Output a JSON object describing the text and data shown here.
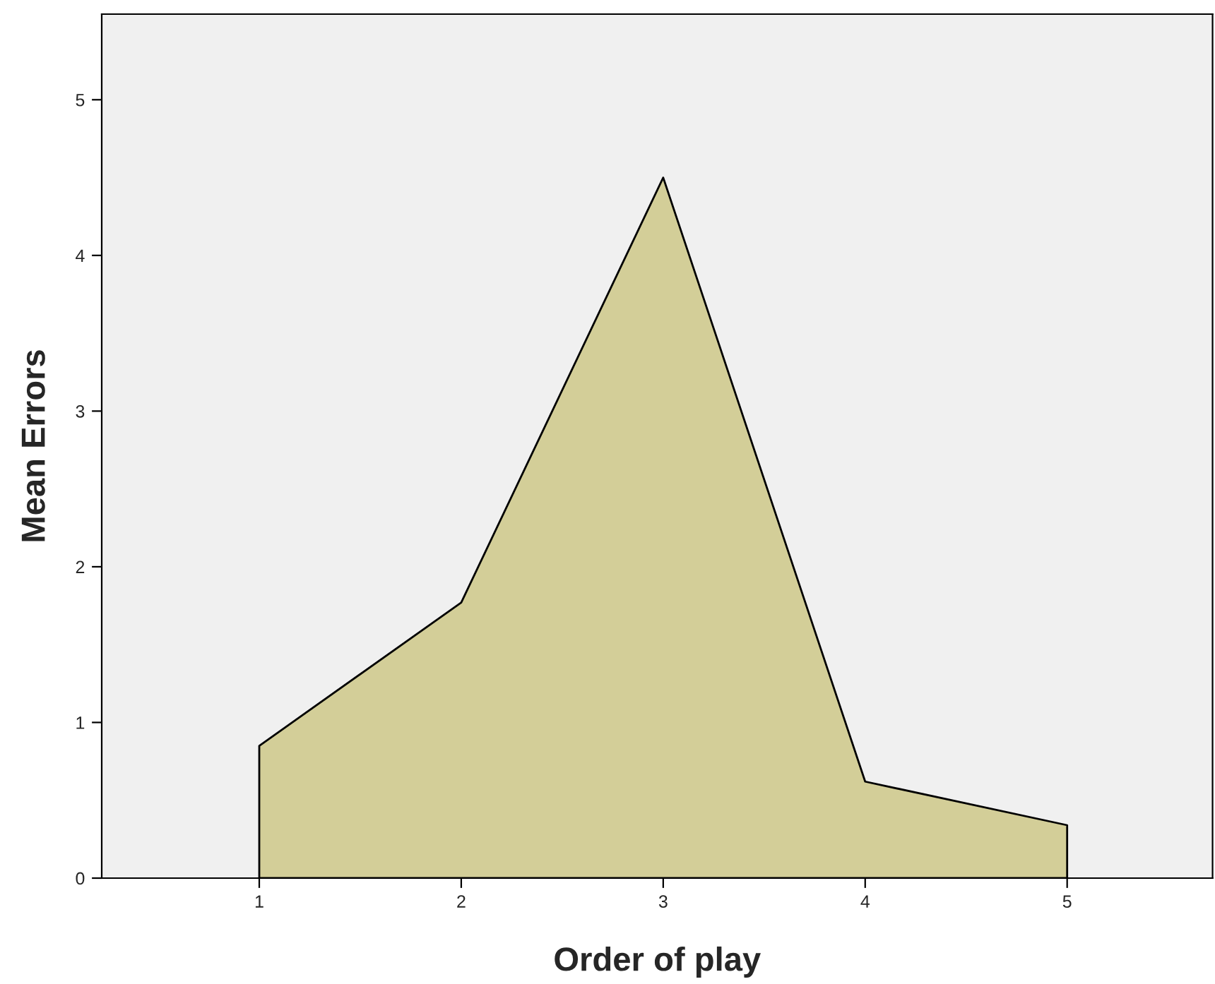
{
  "chart_data": {
    "type": "area",
    "xlabel": "Order of play",
    "ylabel": "Mean Errors",
    "categories": [
      "1",
      "2",
      "3",
      "4",
      "5"
    ],
    "series": [
      {
        "color": "#d3ce98",
        "values": [
          0.85,
          1.77,
          4.5,
          0.62,
          0.34
        ]
      }
    ],
    "ylim": [
      0,
      5.55
    ],
    "yticks": [
      0,
      1,
      2,
      3,
      4,
      5
    ],
    "grid": false,
    "legend": false
  }
}
